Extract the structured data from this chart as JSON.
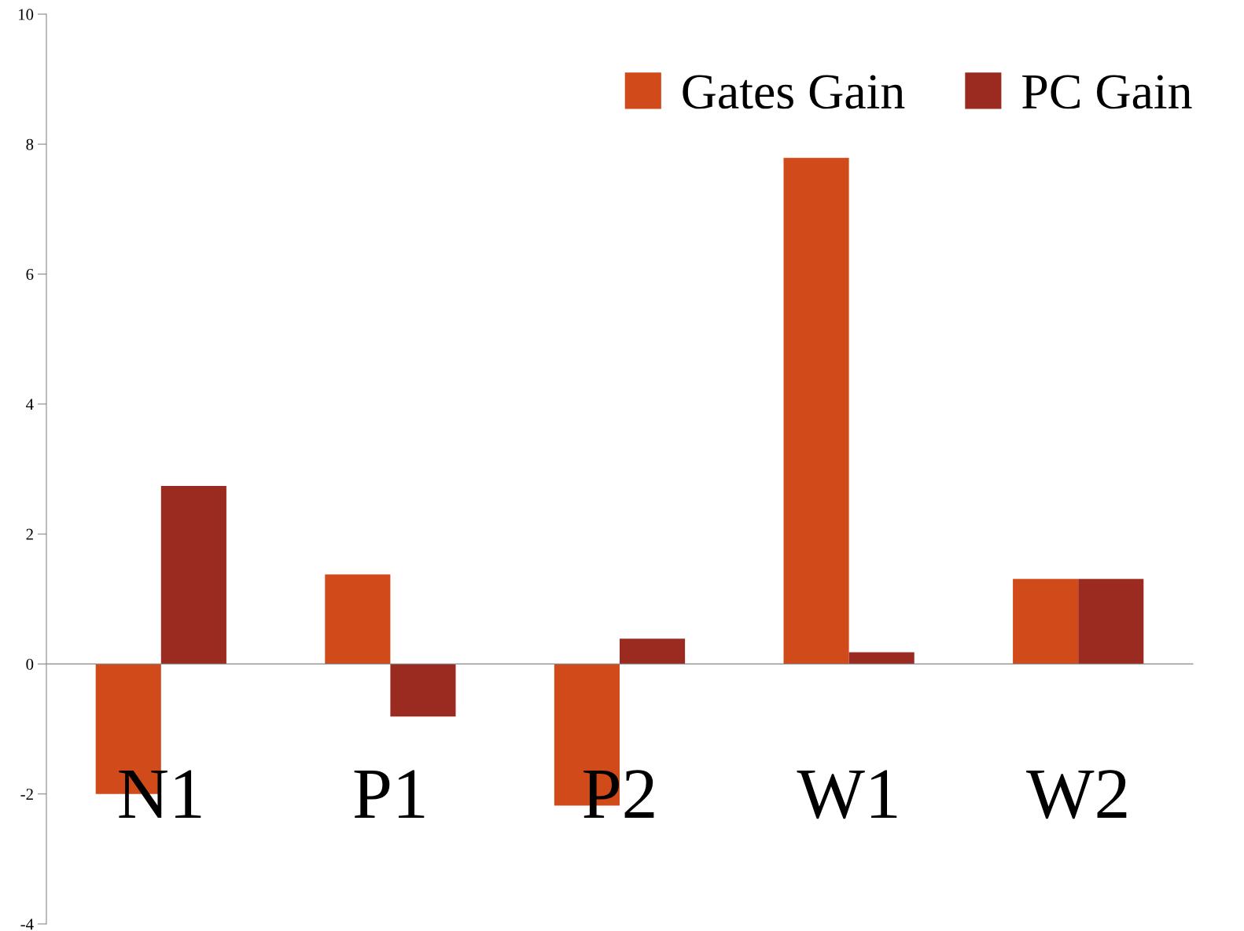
{
  "chart_data": {
    "type": "bar",
    "categories": [
      "N1",
      "P1",
      "P2",
      "W1",
      "W2"
    ],
    "series": [
      {
        "name": "Gates Gain",
        "color": "#d14a1a",
        "values": [
          -2.0,
          1.38,
          -2.18,
          7.79,
          1.31
        ]
      },
      {
        "name": "PC Gain",
        "color": "#9b2b20",
        "values": [
          2.74,
          -0.81,
          0.39,
          0.18,
          1.31
        ]
      }
    ],
    "ylim": [
      -4,
      10
    ],
    "yticks": [
      -4,
      -2,
      0,
      2,
      4,
      6,
      8,
      10
    ],
    "grid": false,
    "legend": "top right"
  }
}
